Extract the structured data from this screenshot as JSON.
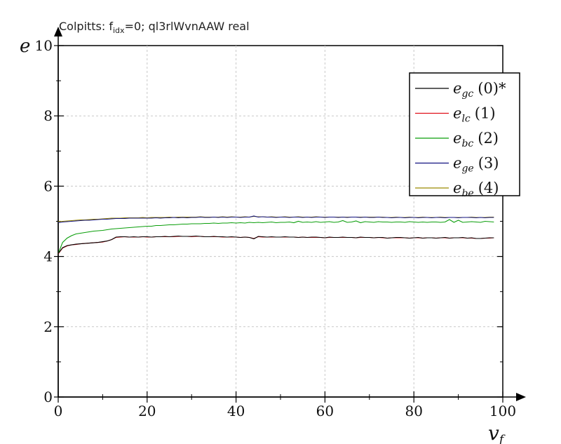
{
  "chart_data": {
    "type": "line",
    "title_main": "Colpitts: f",
    "title_sub": "idx",
    "title_rest": "=0; ql3rlWvnAAW real",
    "xlabel_main": "v",
    "xlabel_sub": "f",
    "ylabel": "e",
    "xlim": [
      0,
      100
    ],
    "ylim": [
      0,
      10
    ],
    "xticks": [
      0,
      20,
      40,
      60,
      80,
      100
    ],
    "yticks": [
      0,
      2,
      4,
      6,
      8,
      10
    ],
    "xtick_labels": [
      "0",
      "20",
      "40",
      "60",
      "80",
      "100"
    ],
    "ytick_labels": [
      "0",
      "2",
      "4",
      "6",
      "8",
      "10"
    ],
    "grid": true,
    "legend_position": "top-right",
    "x": [
      0,
      1,
      2,
      3,
      4,
      5,
      6,
      7,
      8,
      9,
      10,
      11,
      12,
      13,
      14,
      15,
      16,
      17,
      18,
      19,
      20,
      21,
      22,
      23,
      24,
      25,
      26,
      27,
      28,
      29,
      30,
      31,
      32,
      33,
      34,
      35,
      36,
      37,
      38,
      39,
      40,
      41,
      42,
      43,
      44,
      45,
      46,
      47,
      48,
      49,
      50,
      51,
      52,
      53,
      54,
      55,
      56,
      57,
      58,
      59,
      60,
      61,
      62,
      63,
      64,
      65,
      66,
      67,
      68,
      69,
      70,
      71,
      72,
      73,
      74,
      75,
      76,
      77,
      78,
      79,
      80,
      81,
      82,
      83,
      84,
      85,
      86,
      87,
      88,
      89,
      90,
      91,
      92,
      93,
      94,
      95,
      96,
      97,
      98
    ],
    "series": [
      {
        "name": "e_gc (0)*",
        "sub": "gc",
        "num": "(0)*",
        "color": "#000000",
        "values": [
          4.08,
          4.25,
          4.31,
          4.33,
          4.35,
          4.36,
          4.37,
          4.38,
          4.39,
          4.4,
          4.42,
          4.44,
          4.48,
          4.55,
          4.56,
          4.56,
          4.55,
          4.56,
          4.55,
          4.56,
          4.56,
          4.55,
          4.56,
          4.56,
          4.57,
          4.56,
          4.57,
          4.58,
          4.57,
          4.57,
          4.57,
          4.58,
          4.57,
          4.56,
          4.56,
          4.57,
          4.56,
          4.56,
          4.55,
          4.56,
          4.55,
          4.54,
          4.55,
          4.54,
          4.5,
          4.57,
          4.56,
          4.55,
          4.56,
          4.55,
          4.55,
          4.56,
          4.55,
          4.55,
          4.54,
          4.55,
          4.54,
          4.55,
          4.55,
          4.54,
          4.53,
          4.55,
          4.54,
          4.54,
          4.55,
          4.54,
          4.54,
          4.53,
          4.55,
          4.54,
          4.54,
          4.53,
          4.54,
          4.54,
          4.52,
          4.53,
          4.54,
          4.54,
          4.53,
          4.52,
          4.53,
          4.54,
          4.52,
          4.53,
          4.53,
          4.52,
          4.53,
          4.54,
          4.52,
          4.53,
          4.53,
          4.54,
          4.52,
          4.53,
          4.51,
          4.51,
          4.52,
          4.53,
          4.53
        ]
      },
      {
        "name": "e_lc (1)",
        "sub": "lc",
        "num": "(1)",
        "color": "#e0101a",
        "values": [
          4.07,
          4.24,
          4.3,
          4.33,
          4.34,
          4.36,
          4.37,
          4.38,
          4.39,
          4.4,
          4.41,
          4.44,
          4.48,
          4.54,
          4.55,
          4.56,
          4.55,
          4.55,
          4.55,
          4.56,
          4.55,
          4.55,
          4.56,
          4.56,
          4.56,
          4.56,
          4.56,
          4.57,
          4.57,
          4.57,
          4.56,
          4.57,
          4.57,
          4.56,
          4.56,
          4.56,
          4.56,
          4.55,
          4.55,
          4.55,
          4.55,
          4.54,
          4.55,
          4.54,
          4.51,
          4.56,
          4.55,
          4.55,
          4.55,
          4.55,
          4.55,
          4.55,
          4.55,
          4.55,
          4.54,
          4.55,
          4.54,
          4.54,
          4.54,
          4.54,
          4.53,
          4.54,
          4.54,
          4.54,
          4.54,
          4.54,
          4.54,
          4.53,
          4.54,
          4.54,
          4.54,
          4.53,
          4.54,
          4.53,
          4.52,
          4.53,
          4.53,
          4.53,
          4.53,
          4.52,
          4.53,
          4.53,
          4.52,
          4.53,
          4.53,
          4.52,
          4.53,
          4.53,
          4.52,
          4.53,
          4.53,
          4.53,
          4.52,
          4.52,
          4.51,
          4.51,
          4.52,
          4.52,
          4.53
        ]
      },
      {
        "name": "e_bc (2)",
        "sub": "bc",
        "num": "(2)",
        "color": "#0a9e0a",
        "values": [
          4.08,
          4.4,
          4.52,
          4.59,
          4.64,
          4.66,
          4.68,
          4.7,
          4.72,
          4.73,
          4.74,
          4.76,
          4.78,
          4.79,
          4.8,
          4.81,
          4.82,
          4.83,
          4.84,
          4.85,
          4.86,
          4.86,
          4.88,
          4.88,
          4.89,
          4.9,
          4.9,
          4.91,
          4.92,
          4.92,
          4.93,
          4.93,
          4.93,
          4.94,
          4.94,
          4.95,
          4.94,
          4.95,
          4.95,
          4.96,
          4.95,
          4.96,
          4.95,
          4.97,
          4.96,
          4.97,
          4.96,
          4.97,
          4.98,
          4.96,
          4.97,
          4.97,
          4.98,
          4.96,
          5.0,
          4.97,
          4.98,
          4.97,
          4.99,
          4.97,
          4.98,
          4.99,
          4.97,
          4.98,
          5.02,
          4.97,
          4.98,
          5.01,
          4.96,
          4.99,
          4.98,
          4.97,
          4.99,
          4.98,
          4.98,
          4.97,
          4.98,
          4.98,
          4.97,
          4.99,
          4.98,
          4.97,
          4.98,
          4.97,
          4.98,
          4.98,
          4.97,
          4.98,
          5.05,
          4.97,
          5.03,
          4.97,
          4.98,
          4.99,
          4.98,
          4.97,
          5.0,
          4.99,
          4.98
        ]
      },
      {
        "name": "e_ge (3)",
        "sub": "ge",
        "num": "(3)",
        "color": "#121280",
        "values": [
          4.96,
          4.98,
          4.99,
          5.0,
          5.01,
          5.02,
          5.03,
          5.03,
          5.04,
          5.05,
          5.06,
          5.06,
          5.07,
          5.08,
          5.08,
          5.08,
          5.09,
          5.09,
          5.09,
          5.09,
          5.09,
          5.09,
          5.1,
          5.09,
          5.1,
          5.1,
          5.11,
          5.1,
          5.11,
          5.1,
          5.11,
          5.11,
          5.12,
          5.11,
          5.11,
          5.12,
          5.11,
          5.12,
          5.11,
          5.12,
          5.12,
          5.11,
          5.12,
          5.12,
          5.15,
          5.12,
          5.13,
          5.12,
          5.12,
          5.11,
          5.12,
          5.12,
          5.11,
          5.12,
          5.12,
          5.11,
          5.12,
          5.11,
          5.12,
          5.12,
          5.11,
          5.12,
          5.12,
          5.11,
          5.12,
          5.11,
          5.12,
          5.12,
          5.11,
          5.12,
          5.11,
          5.11,
          5.12,
          5.11,
          5.11,
          5.1,
          5.11,
          5.11,
          5.1,
          5.11,
          5.11,
          5.1,
          5.11,
          5.11,
          5.1,
          5.11,
          5.11,
          5.1,
          5.11,
          5.11,
          5.1,
          5.11,
          5.11,
          5.11,
          5.1,
          5.11,
          5.1,
          5.11,
          5.11
        ]
      },
      {
        "name": "e_be (4)",
        "sub": "be",
        "num": "(4)",
        "color": "#9a8a00",
        "values": [
          4.99,
          5.0,
          5.01,
          5.02,
          5.03,
          5.04,
          5.04,
          5.05,
          5.06,
          5.06,
          5.07,
          5.08,
          5.09,
          5.09,
          5.09,
          5.1,
          5.1,
          5.1,
          5.1,
          5.11,
          5.1,
          5.11,
          5.11,
          5.11,
          5.11,
          5.12,
          5.11,
          5.12,
          5.12,
          5.12,
          5.12,
          5.12,
          5.13,
          5.12,
          5.12,
          5.12,
          5.12,
          5.13,
          5.12,
          5.13,
          5.12,
          5.12,
          5.13,
          5.12,
          5.14,
          5.13,
          5.13,
          5.12,
          5.13,
          5.12,
          5.12,
          5.13,
          5.12,
          5.12,
          5.13,
          5.12,
          5.12,
          5.12,
          5.13,
          5.12,
          5.12,
          5.12,
          5.12,
          5.12,
          5.12,
          5.12,
          5.12,
          5.12,
          5.12,
          5.12,
          5.12,
          5.12,
          5.12,
          5.12,
          5.11,
          5.11,
          5.12,
          5.11,
          5.11,
          5.12,
          5.11,
          5.11,
          5.12,
          5.11,
          5.11,
          5.11,
          5.12,
          5.11,
          5.11,
          5.11,
          5.11,
          5.11,
          5.11,
          5.12,
          5.11,
          5.11,
          5.11,
          5.12,
          5.12
        ]
      }
    ]
  }
}
